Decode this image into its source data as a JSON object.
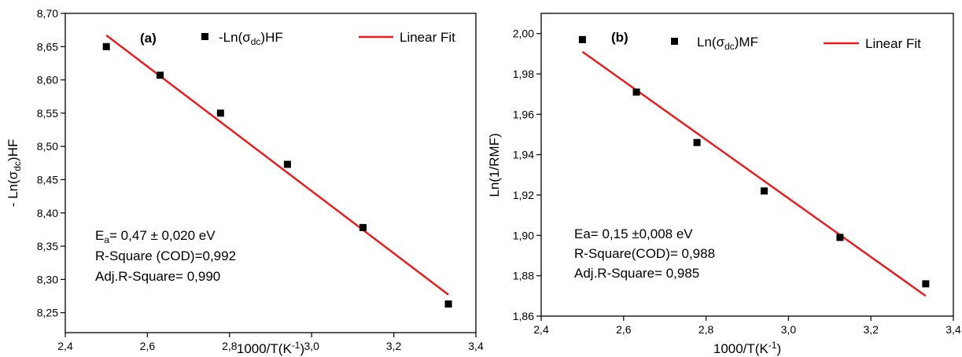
{
  "colors": {
    "fit_line": "#e81e1e",
    "points": "#000000",
    "axis": "#000000",
    "background": "#ffffff"
  },
  "chart_data": [
    {
      "type": "scatter",
      "panel_label": "(a)",
      "xlabel": "1000/T(K⁻¹)",
      "ylabel": "- Ln(σdc)HF",
      "xlim": [
        2.4,
        3.4
      ],
      "ylim": [
        8.22,
        8.7
      ],
      "x_ticks": [
        "2,4",
        "2,6",
        "2,8",
        "3,0",
        "3,2",
        "3,4"
      ],
      "x_tick_values": [
        2.4,
        2.6,
        2.8,
        3.0,
        3.2,
        3.4
      ],
      "y_ticks": [
        "8,25",
        "8,30",
        "8,35",
        "8,40",
        "8,45",
        "8,50",
        "8,55",
        "8,60",
        "8,65",
        "8,70"
      ],
      "y_tick_values": [
        8.25,
        8.3,
        8.35,
        8.4,
        8.45,
        8.5,
        8.55,
        8.6,
        8.65,
        8.7
      ],
      "grid": false,
      "legend_position": "top",
      "series": [
        {
          "name": "-Ln(σdc)HF",
          "kind": "points",
          "x": [
            2.5,
            2.631,
            2.778,
            2.941,
            3.125,
            3.333
          ],
          "y": [
            8.65,
            8.607,
            8.55,
            8.473,
            8.378,
            8.263
          ]
        },
        {
          "name": "Linear Fit",
          "kind": "line",
          "x": [
            2.5,
            3.333
          ],
          "y": [
            8.667,
            8.277
          ]
        }
      ],
      "legend": [
        {
          "label_main": "-Ln(σ",
          "label_sub": "dc",
          "label_tail": ")HF"
        },
        {
          "label_main": "Linear Fit"
        }
      ],
      "annotations": {
        "line1_main": "E",
        "line1_sub": "a",
        "line1_tail": "= 0,47 ± 0,020 eV",
        "line2": "R-Square (COD)=0,992",
        "line3": "Adj.R-Square= 0,990"
      },
      "ylabel_parts": {
        "main": "- Ln(σ",
        "sub": "dc",
        "tail": ")HF"
      },
      "xlabel_parts": {
        "main": "1000/T(K",
        "sup": "-1",
        "tail": ")"
      }
    },
    {
      "type": "scatter",
      "panel_label": "(b)",
      "xlabel": "1000/T(K⁻¹)",
      "ylabel": "Ln(1/RMF)",
      "xlim": [
        2.4,
        3.4
      ],
      "ylim": [
        1.86,
        2.01
      ],
      "x_ticks": [
        "2,4",
        "2,6",
        "2,8",
        "3,0",
        "3,2",
        "3,4"
      ],
      "x_tick_values": [
        2.4,
        2.6,
        2.8,
        3.0,
        3.2,
        3.4
      ],
      "y_ticks": [
        "1,86",
        "1,88",
        "1,90",
        "1,92",
        "1,94",
        "1,96",
        "1,98",
        "2,00"
      ],
      "y_tick_values": [
        1.86,
        1.88,
        1.9,
        1.92,
        1.94,
        1.96,
        1.98,
        2.0
      ],
      "grid": false,
      "legend_position": "top",
      "series": [
        {
          "name": "Ln(σdc)MF",
          "kind": "points",
          "x": [
            2.5,
            2.631,
            2.778,
            2.941,
            3.125,
            3.333
          ],
          "y": [
            1.997,
            1.971,
            1.946,
            1.922,
            1.899,
            1.876
          ]
        },
        {
          "name": "Linear Fit",
          "kind": "line",
          "x": [
            2.5,
            3.333
          ],
          "y": [
            1.991,
            1.87
          ]
        }
      ],
      "legend": [
        {
          "label_main": "Ln(σ",
          "label_sub": "dc",
          "label_tail": ")MF"
        },
        {
          "label_main": "Linear Fit"
        }
      ],
      "annotations": {
        "line1": "Ea= 0,15 ±0,008 eV",
        "line2": "R-Square(COD)= 0,988",
        "line3": "Adj.R-Square= 0,985"
      },
      "ylabel_parts": {
        "main": "Ln(1/RMF)"
      },
      "xlabel_parts": {
        "main": "1000/T(K",
        "sup": "-1",
        "tail": ")"
      }
    }
  ]
}
